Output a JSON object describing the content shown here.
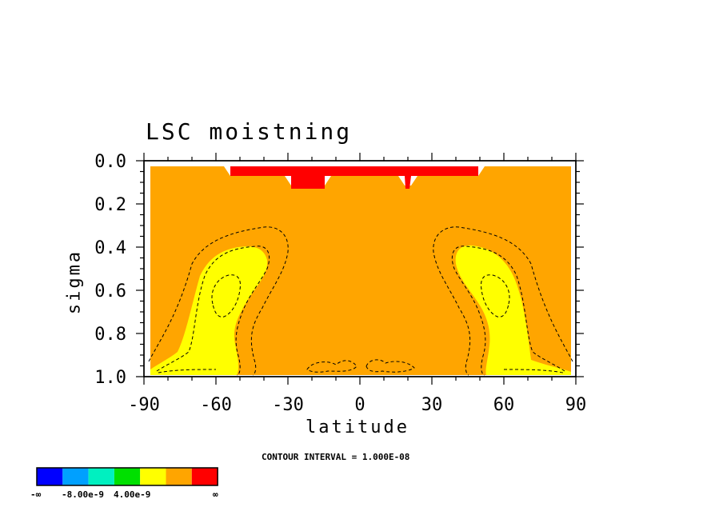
{
  "chart_data": {
    "type": "heatmap",
    "title": "LSC moistning",
    "xlabel": "latitude",
    "ylabel": "sigma",
    "xlim": [
      -90,
      90
    ],
    "ylim": [
      1.0,
      0.0
    ],
    "x_ticks": [
      "-90",
      "-60",
      "-30",
      "0",
      "30",
      "60",
      "90"
    ],
    "y_ticks": [
      "0.0",
      "0.2",
      "0.4",
      "0.6",
      "0.8",
      "1.0"
    ],
    "contour_interval_text": "CONTOUR INTERVAL = 1.000E-08",
    "background_level": "orange",
    "colorbar": {
      "colors": [
        "#0000ff",
        "#00a0ff",
        "#00f0c0",
        "#00e000",
        "#ffff00",
        "#ffa500",
        "#ff0000"
      ],
      "labels": [
        "-∞",
        "-8.00e-9",
        "4.00e-9",
        "∞"
      ]
    },
    "regions": [
      {
        "name": "red-top-band",
        "color": "#ff0000",
        "lat_range": [
          -54,
          49
        ],
        "sigma_range": [
          0.02,
          0.07
        ]
      },
      {
        "name": "red-block-left",
        "color": "#ff0000",
        "lat_range": [
          -30,
          -16
        ],
        "sigma_range": [
          0.07,
          0.12
        ]
      },
      {
        "name": "red-block-right",
        "color": "#ff0000",
        "lat_range": [
          18,
          20
        ],
        "sigma_range": [
          0.07,
          0.12
        ]
      },
      {
        "name": "yellow-south",
        "color": "#ffff00",
        "lat_center": -60,
        "sigma_range": [
          0.38,
          1.0
        ]
      },
      {
        "name": "yellow-north",
        "color": "#ffff00",
        "lat_center": 60,
        "sigma_range": [
          0.38,
          1.0
        ]
      }
    ]
  }
}
